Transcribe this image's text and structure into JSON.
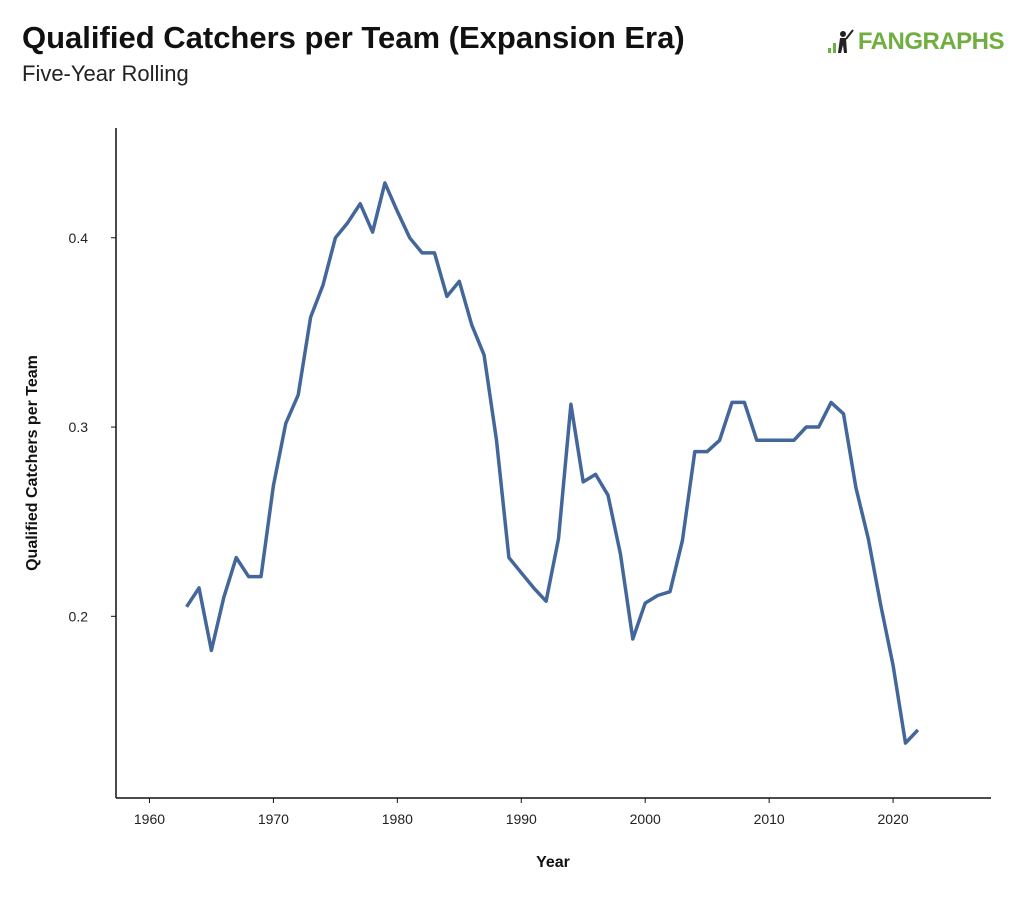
{
  "header": {
    "title": "Qualified Catchers per Team (Expansion Era)",
    "subtitle": "Five-Year Rolling",
    "logo": "FANGRAPHS"
  },
  "chart_data": {
    "type": "line",
    "title": "Qualified Catchers per Team (Expansion Era)",
    "subtitle": "Five-Year Rolling",
    "xlabel": "Year",
    "ylabel": "Qualified Catchers per Team",
    "xlim": [
      1957.3,
      2027.9
    ],
    "ylim": [
      0.104,
      0.458
    ],
    "xticks": [
      1960,
      1970,
      1980,
      1990,
      2000,
      2010,
      2020
    ],
    "yticks": [
      0.2,
      0.3,
      0.4
    ],
    "ytick_labels": [
      "0.2",
      "0.3",
      "0.4"
    ],
    "grid": false,
    "line_color": "#43679a",
    "x": [
      1963,
      1964,
      1965,
      1966,
      1967,
      1968,
      1969,
      1970,
      1971,
      1972,
      1973,
      1974,
      1975,
      1976,
      1977,
      1978,
      1979,
      1980,
      1981,
      1982,
      1983,
      1984,
      1985,
      1986,
      1987,
      1988,
      1989,
      1990,
      1991,
      1992,
      1993,
      1994,
      1995,
      1996,
      1997,
      1998,
      1999,
      2000,
      2001,
      2002,
      2003,
      2004,
      2005,
      2006,
      2007,
      2008,
      2009,
      2010,
      2011,
      2012,
      2013,
      2014,
      2015,
      2016,
      2017,
      2018,
      2019,
      2020,
      2021,
      2022
    ],
    "y": [
      0.205,
      0.215,
      0.182,
      0.21,
      0.231,
      0.221,
      0.221,
      0.269,
      0.302,
      0.317,
      0.358,
      0.375,
      0.4,
      0.408,
      0.418,
      0.403,
      0.429,
      0.414,
      0.4,
      0.392,
      0.392,
      0.369,
      0.377,
      0.354,
      0.338,
      0.293,
      0.231,
      0.223,
      0.215,
      0.208,
      0.241,
      0.312,
      0.271,
      0.275,
      0.264,
      0.233,
      0.188,
      0.207,
      0.211,
      0.213,
      0.24,
      0.287,
      0.287,
      0.293,
      0.313,
      0.313,
      0.293,
      0.293,
      0.293,
      0.293,
      0.3,
      0.3,
      0.313,
      0.307,
      0.268,
      0.241,
      0.206,
      0.174,
      0.133,
      0.14
    ]
  }
}
